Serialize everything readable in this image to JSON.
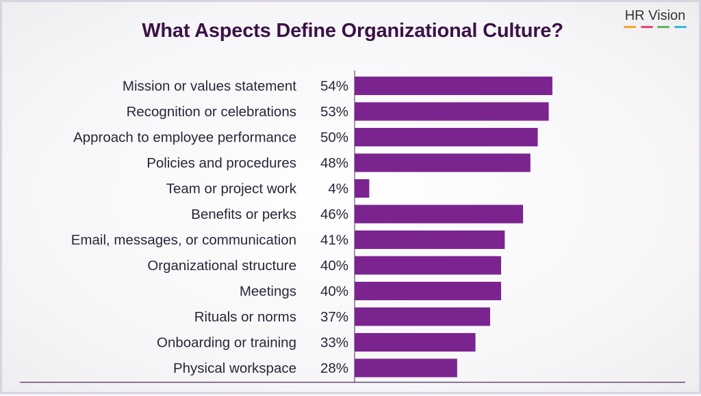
{
  "brand": {
    "name": "HR Vision",
    "underline_colors": [
      "#f5a623",
      "#e8456b",
      "#5cb85c",
      "#3bb4d8"
    ]
  },
  "chart_data": {
    "type": "bar",
    "orientation": "horizontal",
    "title": "What Aspects Define Organizational Culture?",
    "categories": [
      "Mission or values statement",
      "Recognition or celebrations",
      "Approach to employee performance",
      "Policies and procedures",
      "Team or project work",
      "Benefits or perks",
      "Email, messages, or communication",
      "Organizational structure",
      "Meetings",
      "Rituals or norms",
      "Onboarding or training",
      "Physical workspace"
    ],
    "values": [
      54,
      53,
      50,
      48,
      4,
      46,
      41,
      40,
      40,
      37,
      33,
      28
    ],
    "value_labels": [
      "54%",
      "53%",
      "50%",
      "48%",
      "4%",
      "46%",
      "41%",
      "40%",
      "40%",
      "37%",
      "33%",
      "28%"
    ],
    "unit": "%",
    "bar_color": "#7b2490",
    "xlim": [
      0,
      100
    ],
    "grid": false,
    "legend": false
  }
}
